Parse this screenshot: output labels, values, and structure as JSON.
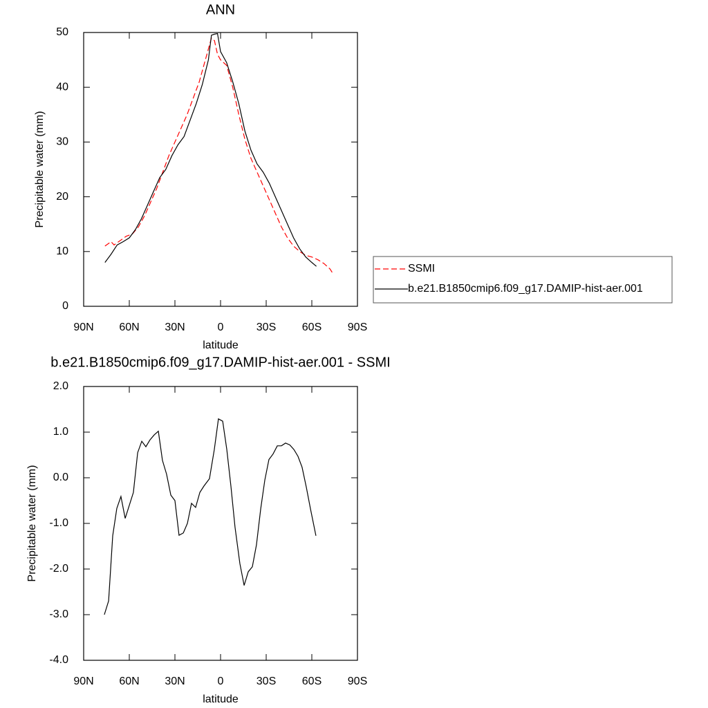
{
  "chart_data": [
    {
      "type": "line",
      "title": "ANN",
      "x_label": "latitude",
      "y_label": "Precipitable water (mm)",
      "xlim": [
        90,
        -90
      ],
      "xticks": [
        {
          "value": 90,
          "label": "90N"
        },
        {
          "value": 60,
          "label": "60N"
        },
        {
          "value": 30,
          "label": "30N"
        },
        0,
        {
          "value": -30,
          "label": "30S"
        },
        {
          "value": -60,
          "label": "60S"
        },
        {
          "value": -90,
          "label": "90S"
        }
      ],
      "ylim": [
        0,
        50
      ],
      "yticks": [
        0,
        10,
        20,
        30,
        40,
        50
      ],
      "legend": "right",
      "series": [
        {
          "name": "SSMI",
          "color": "#ff0000",
          "line_style": "dashed",
          "x": [
            76,
            72,
            70,
            66,
            62,
            58,
            54,
            50,
            46,
            42,
            38,
            34,
            30,
            26,
            22,
            18,
            14,
            10,
            6,
            4,
            2,
            0,
            -4,
            -8,
            -12,
            -16,
            -20,
            -24,
            -28,
            -32,
            -36,
            -40,
            -44,
            -48,
            -52,
            -56,
            -60,
            -64,
            -68,
            -72,
            -74
          ],
          "values": [
            11,
            11.8,
            11.2,
            12,
            12.8,
            13.2,
            14.5,
            16.5,
            19,
            21.5,
            24.5,
            27.5,
            30,
            32.5,
            35,
            38,
            41,
            45,
            49,
            48.5,
            46,
            45,
            44,
            40,
            35,
            30.5,
            27,
            24.5,
            22,
            19.5,
            17,
            14.5,
            12.5,
            11,
            10,
            9.3,
            9,
            8.5,
            7.8,
            6.8,
            5.9
          ]
        },
        {
          "name": "b.e21.B1850cmip6.f09_g17.DAMIP-hist-aer.001",
          "color": "#000000",
          "line_style": "solid",
          "x": [
            76,
            72,
            68,
            64,
            60,
            56,
            52,
            48,
            44,
            40,
            36,
            32,
            28,
            24,
            20,
            16,
            12,
            8,
            6,
            4,
            2,
            0,
            -4,
            -8,
            -12,
            -16,
            -20,
            -24,
            -28,
            -32,
            -36,
            -40,
            -44,
            -48,
            -52,
            -56,
            -60,
            -63
          ],
          "values": [
            8,
            9.5,
            11.2,
            11.8,
            12.5,
            14,
            16,
            18.5,
            21,
            23.5,
            25,
            27.5,
            29.5,
            31,
            34,
            37,
            40.5,
            45,
            49.5,
            49.7,
            49.8,
            46.5,
            44.5,
            41,
            37,
            32,
            28.5,
            26,
            24.5,
            22.5,
            20,
            17.5,
            15,
            12.5,
            10.5,
            9,
            8,
            7.3
          ]
        }
      ]
    },
    {
      "type": "line",
      "title": "b.e21.B1850cmip6.f09_g17.DAMIP-hist-aer.001 - SSMI",
      "x_label": "latitude",
      "y_label": "Precipitable water (mm)",
      "xlim": [
        90,
        -90
      ],
      "xticks": [
        {
          "value": 90,
          "label": "90N"
        },
        {
          "value": 60,
          "label": "60N"
        },
        {
          "value": 30,
          "label": "30N"
        },
        0,
        {
          "value": -30,
          "label": "30S"
        },
        {
          "value": -60,
          "label": "60S"
        },
        {
          "value": -90,
          "label": "90S"
        }
      ],
      "ylim": [
        -4,
        2
      ],
      "yticks": [
        {
          "value": -4,
          "label": "-4.0"
        },
        {
          "value": -3,
          "label": "-3.0"
        },
        {
          "value": -2,
          "label": "-2.0"
        },
        {
          "value": -1,
          "label": "-1.0"
        },
        {
          "value": 0,
          "label": "0.0"
        },
        {
          "value": 1,
          "label": "1.0"
        },
        {
          "value": 2,
          "label": "2.0"
        }
      ],
      "series": [
        {
          "color": "#000000",
          "line_style": "solid",
          "x": [
            76.4,
            73.6,
            70.9,
            68.2,
            65.5,
            62.7,
            57.3,
            54.5,
            51.8,
            49.1,
            46.4,
            43.6,
            40.9,
            38.2,
            35.5,
            32.7,
            30,
            27.3,
            24.5,
            21.8,
            19.1,
            16.4,
            13.6,
            10.9,
            7.3,
            4.1,
            1.4,
            -1.4,
            -4.1,
            -6.8,
            -9.5,
            -12.7,
            -15.5,
            -18.2,
            -20.9,
            -23.6,
            -26.4,
            -29.1,
            -31.8,
            -34.5,
            -37.3,
            -40,
            -42.7,
            -45.5,
            -48.2,
            -50.9,
            -53.6,
            -56.4,
            -59.1,
            -62.7
          ],
          "values": [
            -3.0,
            -2.7,
            -1.27,
            -0.67,
            -0.41,
            -0.89,
            -0.32,
            0.55,
            0.8,
            0.68,
            0.83,
            0.94,
            1.02,
            0.38,
            0.08,
            -0.38,
            -0.5,
            -1.26,
            -1.21,
            -1.0,
            -0.56,
            -0.65,
            -0.32,
            -0.18,
            -0.02,
            0.62,
            1.29,
            1.24,
            0.62,
            -0.18,
            -1.08,
            -1.88,
            -2.36,
            -2.06,
            -1.95,
            -1.47,
            -0.68,
            -0.05,
            0.4,
            0.52,
            0.7,
            0.7,
            0.76,
            0.72,
            0.62,
            0.47,
            0.23,
            -0.21,
            -0.68,
            -1.27
          ]
        }
      ]
    }
  ]
}
